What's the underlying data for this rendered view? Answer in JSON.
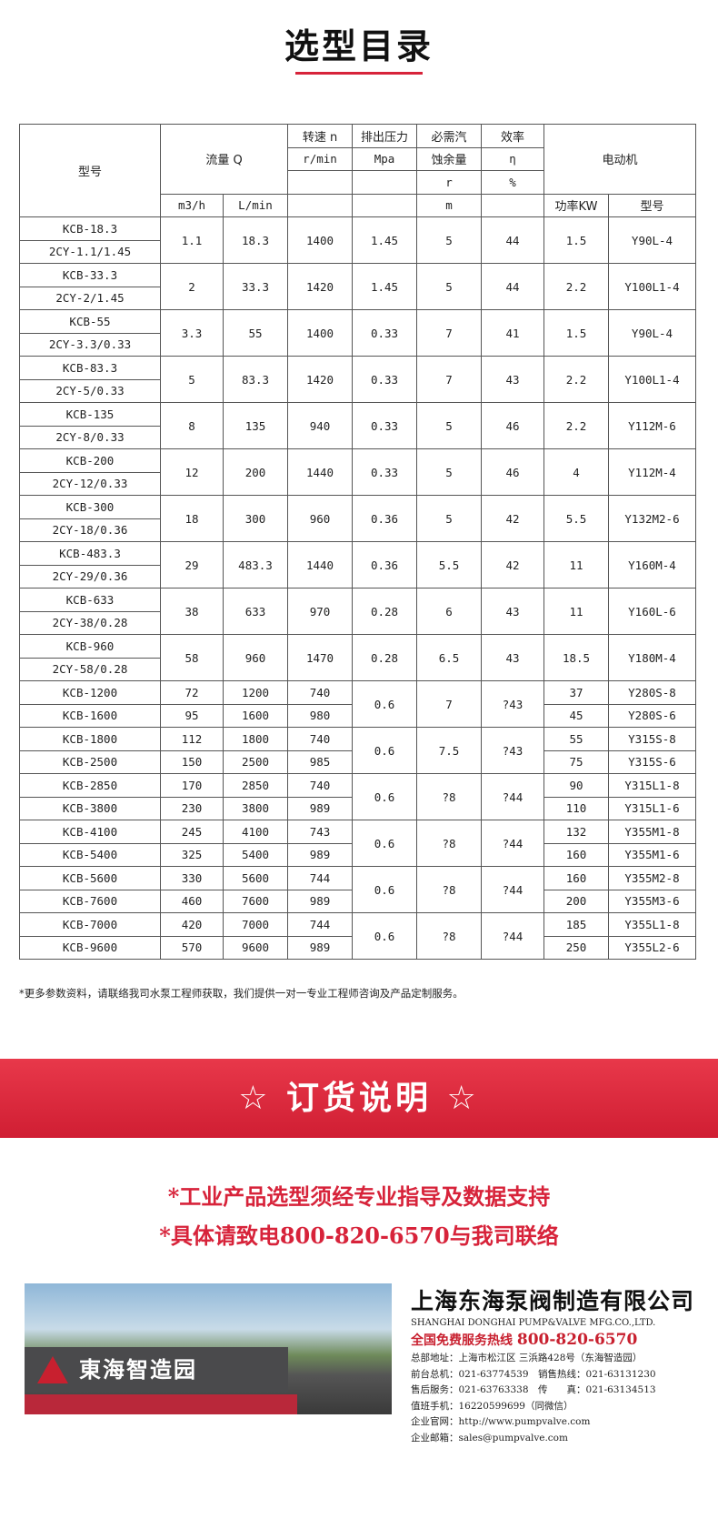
{
  "title": "选型目录",
  "table": {
    "header": {
      "model": "型号",
      "flow": "流量 Q",
      "speed": "转速 n",
      "speed_unit": "r/min",
      "pressure": "排出压力",
      "pressure_unit": "Mpa",
      "npsh1": "必需汽",
      "npsh2": "蚀余量",
      "npsh3": "r",
      "npsh_unit": "m",
      "eff": "效率",
      "eff_sym": "η",
      "eff_unit": "%",
      "motor": "电动机",
      "flow_m3h": "m3/h",
      "flow_lmin": "L/min",
      "power": "功率KW",
      "motor_model": "型号"
    },
    "pairs": [
      {
        "m1": "KCB-18.3",
        "m2": "2CY-1.1/1.45",
        "q": "1.1",
        "l": "18.3",
        "n": "1400",
        "p": "1.45",
        "r": "5",
        "e": "44",
        "kw": "1.5",
        "mm": "Y90L-4"
      },
      {
        "m1": "KCB-33.3",
        "m2": "2CY-2/1.45",
        "q": "2",
        "l": "33.3",
        "n": "1420",
        "p": "1.45",
        "r": "5",
        "e": "44",
        "kw": "2.2",
        "mm": "Y100L1-4"
      },
      {
        "m1": "KCB-55",
        "m2": "2CY-3.3/0.33",
        "q": "3.3",
        "l": "55",
        "n": "1400",
        "p": "0.33",
        "r": "7",
        "e": "41",
        "kw": "1.5",
        "mm": "Y90L-4"
      },
      {
        "m1": "KCB-83.3",
        "m2": "2CY-5/0.33",
        "q": "5",
        "l": "83.3",
        "n": "1420",
        "p": "0.33",
        "r": "7",
        "e": "43",
        "kw": "2.2",
        "mm": "Y100L1-4"
      },
      {
        "m1": "KCB-135",
        "m2": "2CY-8/0.33",
        "q": "8",
        "l": "135",
        "n": "940",
        "p": "0.33",
        "r": "5",
        "e": "46",
        "kw": "2.2",
        "mm": "Y112M-6"
      },
      {
        "m1": "KCB-200",
        "m2": "2CY-12/0.33",
        "q": "12",
        "l": "200",
        "n": "1440",
        "p": "0.33",
        "r": "5",
        "e": "46",
        "kw": "4",
        "mm": "Y112M-4"
      },
      {
        "m1": "KCB-300",
        "m2": "2CY-18/0.36",
        "q": "18",
        "l": "300",
        "n": "960",
        "p": "0.36",
        "r": "5",
        "e": "42",
        "kw": "5.5",
        "mm": "Y132M2-6"
      },
      {
        "m1": "KCB-483.3",
        "m2": "2CY-29/0.36",
        "q": "29",
        "l": "483.3",
        "n": "1440",
        "p": "0.36",
        "r": "5.5",
        "e": "42",
        "kw": "11",
        "mm": "Y160M-4"
      },
      {
        "m1": "KCB-633",
        "m2": "2CY-38/0.28",
        "q": "38",
        "l": "633",
        "n": "970",
        "p": "0.28",
        "r": "6",
        "e": "43",
        "kw": "11",
        "mm": "Y160L-6"
      },
      {
        "m1": "KCB-960",
        "m2": "2CY-58/0.28",
        "q": "58",
        "l": "960",
        "n": "1470",
        "p": "0.28",
        "r": "6.5",
        "e": "43",
        "kw": "18.5",
        "mm": "Y180M-4"
      }
    ],
    "groups": [
      {
        "p": "0.6",
        "r": "7",
        "e": "?43",
        "rows": [
          {
            "m": "KCB-1200",
            "q": "72",
            "l": "1200",
            "n": "740",
            "kw": "37",
            "mm": "Y280S-8"
          },
          {
            "m": "KCB-1600",
            "q": "95",
            "l": "1600",
            "n": "980",
            "kw": "45",
            "mm": "Y280S-6"
          }
        ]
      },
      {
        "p": "0.6",
        "r": "7.5",
        "e": "?43",
        "rows": [
          {
            "m": "KCB-1800",
            "q": "112",
            "l": "1800",
            "n": "740",
            "kw": "55",
            "mm": "Y315S-8"
          },
          {
            "m": "KCB-2500",
            "q": "150",
            "l": "2500",
            "n": "985",
            "kw": "75",
            "mm": "Y315S-6"
          }
        ]
      },
      {
        "p": "0.6",
        "r": "?8",
        "e": "?44",
        "rows": [
          {
            "m": "KCB-2850",
            "q": "170",
            "l": "2850",
            "n": "740",
            "kw": "90",
            "mm": "Y315L1-8"
          },
          {
            "m": "KCB-3800",
            "q": "230",
            "l": "3800",
            "n": "989",
            "kw": "110",
            "mm": "Y315L1-6"
          }
        ]
      },
      {
        "p": "0.6",
        "r": "?8",
        "e": "?44",
        "rows": [
          {
            "m": "KCB-4100",
            "q": "245",
            "l": "4100",
            "n": "743",
            "kw": "132",
            "mm": "Y355M1-8"
          },
          {
            "m": "KCB-5400",
            "q": "325",
            "l": "5400",
            "n": "989",
            "kw": "160",
            "mm": "Y355M1-6"
          }
        ]
      },
      {
        "p": "0.6",
        "r": "?8",
        "e": "?44",
        "rows": [
          {
            "m": "KCB-5600",
            "q": "330",
            "l": "5600",
            "n": "744",
            "kw": "160",
            "mm": "Y355M2-8"
          },
          {
            "m": "KCB-7600",
            "q": "460",
            "l": "7600",
            "n": "989",
            "kw": "200",
            "mm": "Y355M3-6"
          }
        ]
      },
      {
        "p": "0.6",
        "r": "?8",
        "e": "?44",
        "rows": [
          {
            "m": "KCB-7000",
            "q": "420",
            "l": "7000",
            "n": "744",
            "kw": "185",
            "mm": "Y355L1-8"
          },
          {
            "m": "KCB-9600",
            "q": "570",
            "l": "9600",
            "n": "989",
            "kw": "250",
            "mm": "Y355L2-6"
          }
        ]
      }
    ]
  },
  "note": "*更多参数资料，请联络我司水泵工程师获取，我们提供一对一专业工程师咨询及产品定制服务。",
  "banner": "☆ 订货说明 ☆",
  "notice": [
    "*工业产品选型须经专业指导及数据支持",
    "*具体请致电800-820-6570与我司联络"
  ],
  "sign_text": "東海智造园",
  "company": {
    "name_cn": "上海东海泵阀制造有限公司",
    "name_en": "SHANGHAI DONGHAI PUMP&VALVE MFG.CO.,LTD.",
    "hotline_label": "全国免费服务热线",
    "hotline": "800-820-6570",
    "lines": [
      "总部地址：上海市松江区 三浜路428号（东海智造园）",
      "前台总机：021-63774539　销售热线：021-63131230",
      "售后服务：021-63763338　传　　真：021-63134513",
      "值班手机：16220599699（同微信）",
      "企业官网：http://www.pumpvalve.com",
      "企业邮箱：sales@pumpvalve.com"
    ]
  },
  "colors": {
    "accent": "#d7233a"
  }
}
